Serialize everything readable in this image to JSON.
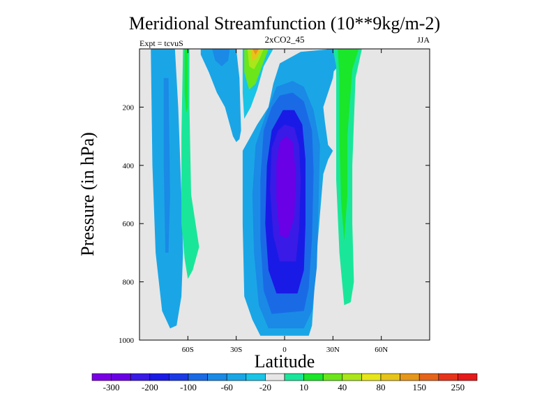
{
  "chart_data": {
    "type": "contour",
    "title": "Meridional Streamfunction (10**9kg/m-2)",
    "subtitle": "2xCO2_45",
    "left_label": "Expt = tcvuS",
    "right_label": "JJA",
    "xlabel": "Latitude",
    "ylabel": "Pressure (in hPa)",
    "xlim": [
      -90,
      90
    ],
    "ylim": [
      1000,
      0
    ],
    "x_ticks": [
      {
        "value": -60,
        "label": "60S"
      },
      {
        "value": -30,
        "label": "30S"
      },
      {
        "value": 0,
        "label": "0"
      },
      {
        "value": 30,
        "label": "30N"
      },
      {
        "value": 60,
        "label": "60N"
      }
    ],
    "y_ticks": [
      {
        "value": 200,
        "label": "200"
      },
      {
        "value": 400,
        "label": "400"
      },
      {
        "value": 600,
        "label": "600"
      },
      {
        "value": 800,
        "label": "800"
      },
      {
        "value": 1000,
        "label": "1000"
      }
    ],
    "background_color": "#e6e6e6",
    "colorbar": {
      "colors": [
        "#7a00e6",
        "#6a00e6",
        "#3a1ae6",
        "#1a1ae6",
        "#1a3ae6",
        "#1a6ae6",
        "#1a8ae6",
        "#1aa6e6",
        "#1ac4e6",
        "#e6e6e6",
        "#1ae69a",
        "#1ae62a",
        "#6ae61a",
        "#aae61a",
        "#e6e61a",
        "#e6c41a",
        "#e6961a",
        "#e6641a",
        "#e6341a",
        "#e61a1a"
      ],
      "tick_labels": [
        "-300",
        "-200",
        "-100",
        "-60",
        "-20",
        "10",
        "40",
        "80",
        "150",
        "250"
      ]
    },
    "contour_regions": [
      {
        "fill": "#1aa6e6",
        "points": [
          [
            -83,
            0
          ],
          [
            -68,
            0
          ],
          [
            -66,
            200
          ],
          [
            -64,
            500
          ],
          [
            -63,
            700
          ],
          [
            -64,
            850
          ],
          [
            -67,
            950
          ],
          [
            -71,
            960
          ],
          [
            -76,
            900
          ],
          [
            -80,
            700
          ],
          [
            -82,
            400
          ]
        ]
      },
      {
        "fill": "#1a8ae6",
        "points": [
          [
            -75,
            100
          ],
          [
            -72,
            100
          ],
          [
            -71,
            500
          ],
          [
            -72,
            700
          ],
          [
            -74,
            700
          ],
          [
            -75,
            400
          ]
        ]
      },
      {
        "fill": "#1ae69a",
        "points": [
          [
            -63,
            0
          ],
          [
            -59,
            0
          ],
          [
            -59,
            200
          ],
          [
            -58,
            500
          ],
          [
            -53,
            680
          ],
          [
            -57,
            760
          ],
          [
            -60,
            790
          ],
          [
            -62,
            720
          ],
          [
            -64,
            600
          ],
          [
            -64,
            300
          ]
        ]
      },
      {
        "fill": "#1ae62a",
        "points": [
          [
            -62,
            0
          ],
          [
            -60,
            0
          ],
          [
            -60,
            200
          ],
          [
            -61,
            220
          ],
          [
            -62,
            150
          ]
        ]
      },
      {
        "fill": "#1aa6e6",
        "points": [
          [
            -52,
            0
          ],
          [
            -30,
            0
          ],
          [
            -28,
            100
          ],
          [
            -27,
            280
          ],
          [
            -28,
            310
          ],
          [
            -30,
            320
          ],
          [
            -32,
            300
          ],
          [
            -37,
            200
          ],
          [
            -42,
            150
          ],
          [
            -47,
            80
          ],
          [
            -52,
            20
          ]
        ]
      },
      {
        "fill": "#1a8ae6",
        "points": [
          [
            -45,
            0
          ],
          [
            -34,
            0
          ],
          [
            -35,
            40
          ],
          [
            -39,
            60
          ],
          [
            -43,
            40
          ]
        ]
      },
      {
        "fill": "#1ac4e6",
        "points": [
          [
            -26,
            0
          ],
          [
            -7,
            0
          ],
          [
            -13,
            60
          ],
          [
            -17,
            140
          ],
          [
            -21,
            200
          ],
          [
            -25,
            240
          ],
          [
            -26,
            150
          ]
        ]
      },
      {
        "fill": "#6ae61a",
        "points": [
          [
            -25,
            0
          ],
          [
            -10,
            0
          ],
          [
            -14,
            60
          ],
          [
            -18,
            120
          ],
          [
            -22,
            140
          ],
          [
            -25,
            80
          ]
        ]
      },
      {
        "fill": "#aae61a",
        "points": [
          [
            -23,
            0
          ],
          [
            -13,
            0
          ],
          [
            -16,
            40
          ],
          [
            -19,
            70
          ],
          [
            -22,
            60
          ]
        ]
      },
      {
        "fill": "#e6c41a",
        "points": [
          [
            -21,
            0
          ],
          [
            -15,
            0
          ],
          [
            -17,
            30
          ],
          [
            -20,
            40
          ]
        ]
      },
      {
        "fill": "#e6961a",
        "points": [
          [
            -20,
            0
          ],
          [
            -16,
            0
          ],
          [
            -18,
            20
          ]
        ]
      },
      {
        "fill": "#1aa6e6",
        "points": [
          [
            -3,
            50
          ],
          [
            10,
            10
          ],
          [
            30,
            0
          ],
          [
            32,
            10
          ],
          [
            30,
            100
          ],
          [
            24,
            200
          ],
          [
            25,
            250
          ],
          [
            27,
            330
          ],
          [
            30,
            350
          ],
          [
            27,
            380
          ],
          [
            24,
            430
          ],
          [
            20,
            700
          ],
          [
            17,
            950
          ],
          [
            15,
            985
          ],
          [
            -15,
            985
          ],
          [
            -20,
            930
          ],
          [
            -25,
            850
          ],
          [
            -26,
            600
          ],
          [
            -26,
            350
          ],
          [
            -22,
            310
          ],
          [
            -17,
            260
          ],
          [
            -10,
            200
          ],
          [
            -7,
            120
          ]
        ]
      },
      {
        "fill": "#1a8ae6",
        "points": [
          [
            -5,
            130
          ],
          [
            5,
            110
          ],
          [
            12,
            130
          ],
          [
            18,
            210
          ],
          [
            22,
            330
          ],
          [
            21,
            550
          ],
          [
            20,
            750
          ],
          [
            17,
            900
          ],
          [
            12,
            960
          ],
          [
            -10,
            960
          ],
          [
            -16,
            880
          ],
          [
            -19,
            700
          ],
          [
            -20,
            500
          ],
          [
            -18,
            330
          ],
          [
            -12,
            230
          ]
        ]
      },
      {
        "fill": "#1a6ae6",
        "points": [
          [
            -3,
            160
          ],
          [
            5,
            150
          ],
          [
            12,
            180
          ],
          [
            17,
            280
          ],
          [
            18,
            420
          ],
          [
            17,
            650
          ],
          [
            15,
            820
          ],
          [
            12,
            900
          ],
          [
            -8,
            910
          ],
          [
            -13,
            830
          ],
          [
            -15,
            650
          ],
          [
            -15,
            450
          ],
          [
            -13,
            280
          ],
          [
            -8,
            200
          ]
        ]
      },
      {
        "fill": "#1a1ae6",
        "points": [
          [
            -1,
            210
          ],
          [
            6,
            210
          ],
          [
            11,
            260
          ],
          [
            13,
            380
          ],
          [
            13,
            600
          ],
          [
            12,
            760
          ],
          [
            8,
            840
          ],
          [
            -5,
            840
          ],
          [
            -10,
            760
          ],
          [
            -12,
            600
          ],
          [
            -11,
            400
          ],
          [
            -8,
            280
          ]
        ]
      },
      {
        "fill": "#3a1ae6",
        "points": [
          [
            0,
            260
          ],
          [
            6,
            270
          ],
          [
            9,
            330
          ],
          [
            10,
            450
          ],
          [
            9,
            620
          ],
          [
            7,
            730
          ],
          [
            -3,
            730
          ],
          [
            -7,
            640
          ],
          [
            -9,
            480
          ],
          [
            -8,
            340
          ],
          [
            -4,
            280
          ]
        ]
      },
      {
        "fill": "#6a00e6",
        "points": [
          [
            1,
            300
          ],
          [
            5,
            320
          ],
          [
            7,
            430
          ],
          [
            6,
            580
          ],
          [
            2,
            650
          ],
          [
            -3,
            640
          ],
          [
            -5,
            520
          ],
          [
            -5,
            390
          ],
          [
            -3,
            320
          ]
        ]
      },
      {
        "fill": "#1aa6e6",
        "points": [
          [
            26,
            0
          ],
          [
            35,
            0
          ],
          [
            35,
            50
          ],
          [
            30,
            80
          ],
          [
            27,
            40
          ]
        ]
      },
      {
        "fill": "#1ae69a",
        "points": [
          [
            30,
            0
          ],
          [
            48,
            0
          ],
          [
            44,
            100
          ],
          [
            42,
            400
          ],
          [
            42,
            600
          ],
          [
            43,
            800
          ],
          [
            41,
            870
          ],
          [
            37,
            880
          ],
          [
            34,
            700
          ],
          [
            32,
            450
          ],
          [
            32,
            200
          ],
          [
            32,
            60
          ]
        ]
      },
      {
        "fill": "#1ae62a",
        "points": [
          [
            33,
            0
          ],
          [
            46,
            0
          ],
          [
            42,
            70
          ],
          [
            39,
            300
          ],
          [
            39,
            500
          ],
          [
            37,
            660
          ],
          [
            35,
            520
          ],
          [
            34,
            300
          ],
          [
            34,
            100
          ]
        ]
      }
    ],
    "notes": "Filled contour plot of the zonal-mean meridional streamfunction. Region vertices are given as [latitude, pressure_hPa], estimated from the plot."
  }
}
